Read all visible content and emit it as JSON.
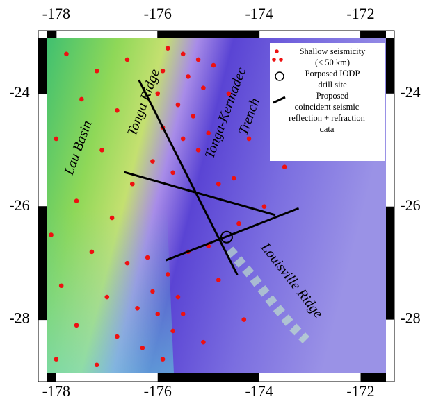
{
  "map": {
    "xlim": [
      -178.19,
      -171.5
    ],
    "ylim": [
      -28.95,
      -23.02
    ],
    "xticks": [
      -178,
      -176,
      -174,
      -172
    ],
    "yticks": [
      -24,
      -26,
      -28
    ],
    "labels": [
      "Lau Basin",
      "Tonga Ridge",
      "Tonga-Kermadec",
      "Trench",
      "Louisville Ridge"
    ],
    "legend": [
      {
        "lines": [
          "Shallow seismicity",
          "(< 50 km)"
        ]
      },
      {
        "lines": [
          "Porposed IODP",
          "drill site"
        ]
      },
      {
        "lines": [
          "Proposed",
          "coincident seismic",
          "reflection + refraction",
          "data"
        ]
      }
    ],
    "seismicity": {
      "lon": [
        -175.8,
        -175.5,
        -175.2,
        -175.9,
        -175.4,
        -175.1,
        -176.0,
        -175.6,
        -175.3,
        -175.9,
        -175.5,
        -175.2,
        -176.1,
        -175.7,
        -174.9,
        -175.0,
        -174.8,
        -177.8,
        -177.2,
        -176.6,
        -177.5,
        -176.8,
        -178.0,
        -177.1,
        -176.5,
        -177.6,
        -176.9,
        -178.1,
        -177.3,
        -176.6,
        -177.9,
        -177.0,
        -176.4,
        -177.6,
        -176.8,
        -178.0,
        -177.2,
        -176.2,
        -175.8,
        -176.1,
        -175.6,
        -176.0,
        -175.7,
        -176.3,
        -175.9,
        -175.5,
        -175.4,
        -174.6,
        -174.2,
        -174.5,
        -173.9,
        -174.4,
        -175.0,
        -174.8,
        -174.3,
        -175.1,
        -173.5
      ],
      "lat": [
        -23.2,
        -23.3,
        -23.4,
        -23.6,
        -23.7,
        -23.9,
        -24.0,
        -24.2,
        -24.4,
        -24.6,
        -24.8,
        -25.0,
        -25.2,
        -25.4,
        -23.5,
        -24.7,
        -25.6,
        -23.3,
        -23.6,
        -23.4,
        -24.1,
        -24.3,
        -24.8,
        -25.0,
        -25.6,
        -25.9,
        -26.2,
        -26.5,
        -26.8,
        -27.0,
        -27.4,
        -27.6,
        -27.8,
        -28.1,
        -28.3,
        -28.7,
        -28.8,
        -26.9,
        -27.2,
        -27.5,
        -27.6,
        -27.9,
        -28.2,
        -28.5,
        -28.7,
        -27.9,
        -26.8,
        -24.0,
        -24.8,
        -25.5,
        -26.0,
        -26.3,
        -26.7,
        -27.3,
        -28.0,
        -28.4,
        -25.3
      ]
    },
    "drill_site": {
      "lon": -174.64,
      "lat": -26.54
    },
    "profiles": [
      {
        "lon": [
          -176.37,
          -174.43
        ],
        "lat": [
          -23.76,
          -27.21
        ]
      },
      {
        "lon": [
          -176.66,
          -173.68
        ],
        "lat": [
          -25.39,
          -26.15
        ]
      },
      {
        "lon": [
          -175.84,
          -173.22
        ],
        "lat": [
          -26.95,
          -26.03
        ]
      }
    ]
  }
}
